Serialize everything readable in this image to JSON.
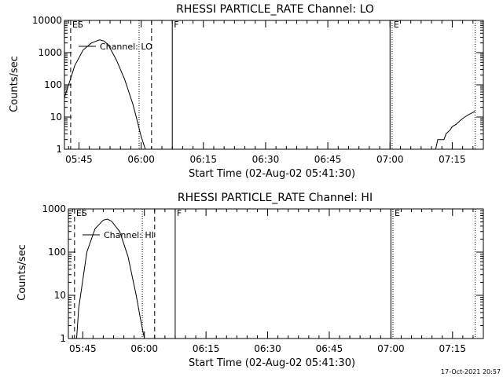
{
  "footer_timestamp": "17-Oct-2021 20:57",
  "chart_data": [
    {
      "type": "line",
      "title": "RHESSI PARTICLE_RATE Channel: LO",
      "xlabel": "Start Time (02-Aug-02 05:41:30)",
      "ylabel": "Counts/sec",
      "y_scale": "log",
      "ylim": [
        1,
        10000
      ],
      "xlim": [
        "05:41:30",
        "07:22:30"
      ],
      "grid": false,
      "x_ticks": [
        "05:45",
        "06:00",
        "06:15",
        "06:30",
        "06:45",
        "07:00",
        "07:15"
      ],
      "y_ticks": [
        "1",
        "10",
        "100",
        "1000",
        "10000"
      ],
      "legend": {
        "label": "Channel: LO",
        "placement": "top-left"
      },
      "markers": [
        {
          "label": "ES",
          "time": "05:43:00",
          "style": "dashed"
        },
        {
          "label": "",
          "time": "05:59:30",
          "style": "dotted"
        },
        {
          "label": "",
          "time": "06:02:30",
          "style": "dashed"
        },
        {
          "label": "F",
          "time": "06:07:30",
          "style": "solid"
        },
        {
          "label": "",
          "time": "07:00:00",
          "style": "solid"
        },
        {
          "label": "E",
          "time": "07:00:30",
          "style": "dotted"
        },
        {
          "label": "",
          "time": "07:20:30",
          "style": "dotted"
        }
      ],
      "series": [
        {
          "name": "Channel: LO",
          "x": [
            "05:41:30",
            "05:42:30",
            "05:44:00",
            "05:46:00",
            "05:48:00",
            "05:50:00",
            "05:51:00",
            "05:52:00",
            "05:54:00",
            "05:56:00",
            "05:58:00",
            "05:59:00",
            "06:00:00",
            "06:01:00"
          ],
          "y": [
            40,
            100,
            400,
            1200,
            2000,
            2500,
            2300,
            1800,
            600,
            150,
            25,
            8,
            2.5,
            1
          ]
        },
        {
          "name": "",
          "x": [
            "07:09:30",
            "07:11:00",
            "07:11:30",
            "07:13:00",
            "07:13:30",
            "07:14:30",
            "07:15:00",
            "07:16:00",
            "07:17:00",
            "07:18:00",
            "07:19:00",
            "07:20:30"
          ],
          "y": [
            1,
            1,
            2,
            2,
            3,
            4,
            5,
            6,
            8,
            10,
            12,
            15
          ]
        }
      ]
    },
    {
      "type": "line",
      "title": "RHESSI PARTICLE_RATE Channel: HI",
      "xlabel": "Start Time (02-Aug-02 05:41:30)",
      "ylabel": "Counts/sec",
      "y_scale": "log",
      "ylim": [
        1,
        1000
      ],
      "xlim": [
        "05:41:30",
        "07:22:30"
      ],
      "grid": false,
      "x_ticks": [
        "05:45",
        "06:00",
        "06:15",
        "06:30",
        "06:45",
        "07:00",
        "07:15"
      ],
      "y_ticks": [
        "1",
        "10",
        "100",
        "1000"
      ],
      "legend": {
        "label": "Channel: HI",
        "placement": "top-left"
      },
      "markers": [
        {
          "label": "ES",
          "time": "05:43:00",
          "style": "dashed"
        },
        {
          "label": "",
          "time": "05:59:30",
          "style": "dotted"
        },
        {
          "label": "",
          "time": "06:02:30",
          "style": "dashed"
        },
        {
          "label": "F",
          "time": "06:07:30",
          "style": "solid"
        },
        {
          "label": "",
          "time": "07:00:00",
          "style": "solid"
        },
        {
          "label": "E",
          "time": "07:00:30",
          "style": "dotted"
        },
        {
          "label": "",
          "time": "07:20:30",
          "style": "dotted"
        }
      ],
      "series": [
        {
          "name": "Channel: HI",
          "x": [
            "05:43:30",
            "05:44:00",
            "05:46:00",
            "05:48:00",
            "05:50:00",
            "05:51:00",
            "05:52:00",
            "05:54:00",
            "05:56:00",
            "05:58:00",
            "05:59:00",
            "06:00:00"
          ],
          "y": [
            1,
            5,
            100,
            350,
            550,
            580,
            520,
            300,
            80,
            10,
            3,
            1
          ]
        }
      ]
    }
  ]
}
